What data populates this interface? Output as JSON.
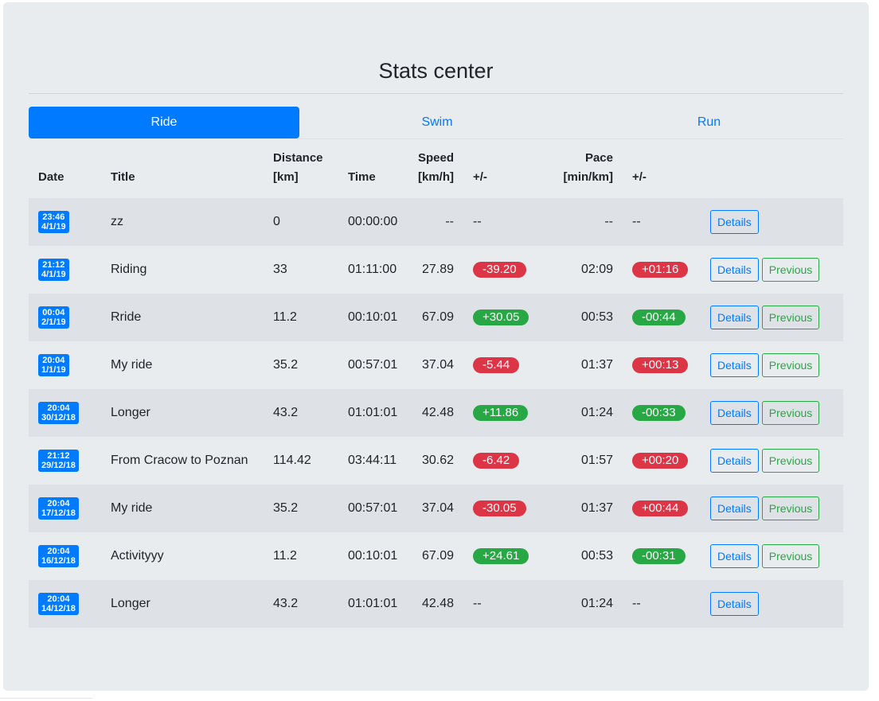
{
  "page": {
    "title": "Stats center"
  },
  "tabs": [
    {
      "label": "Ride",
      "active": true
    },
    {
      "label": "Swim",
      "active": false
    },
    {
      "label": "Run",
      "active": false
    }
  ],
  "table": {
    "headers": {
      "date": "Date",
      "title": "Title",
      "distance": [
        "Distance",
        "[km]"
      ],
      "time": "Time",
      "speed": [
        "Speed",
        "[km/h]"
      ],
      "speed_diff": "+/-",
      "pace": [
        "Pace",
        "[min/km]"
      ],
      "pace_diff": "+/-"
    },
    "details_label": "Details",
    "previous_label": "Previous",
    "rows": [
      {
        "time_of_day": "23:46",
        "date": "4/1/19",
        "title": "zz",
        "distance": "0",
        "time": "00:00:00",
        "speed": "--",
        "speed_diff": "--",
        "speed_diff_type": "none",
        "pace": "--",
        "pace_diff": "--",
        "pace_diff_type": "none",
        "has_previous": false
      },
      {
        "time_of_day": "21:12",
        "date": "4/1/19",
        "title": "Riding",
        "distance": "33",
        "time": "01:11:00",
        "speed": "27.89",
        "speed_diff": "-39.20",
        "speed_diff_type": "neg",
        "pace": "02:09",
        "pace_diff": "+01:16",
        "pace_diff_type": "neg",
        "has_previous": true
      },
      {
        "time_of_day": "00:04",
        "date": "2/1/19",
        "title": "Rride",
        "distance": "11.2",
        "time": "00:10:01",
        "speed": "67.09",
        "speed_diff": "+30.05",
        "speed_diff_type": "pos",
        "pace": "00:53",
        "pace_diff": "-00:44",
        "pace_diff_type": "pos",
        "has_previous": true
      },
      {
        "time_of_day": "20:04",
        "date": "1/1/19",
        "title": "My ride",
        "distance": "35.2",
        "time": "00:57:01",
        "speed": "37.04",
        "speed_diff": "-5.44",
        "speed_diff_type": "neg",
        "pace": "01:37",
        "pace_diff": "+00:13",
        "pace_diff_type": "neg",
        "has_previous": true
      },
      {
        "time_of_day": "20:04",
        "date": "30/12/18",
        "title": "Longer",
        "distance": "43.2",
        "time": "01:01:01",
        "speed": "42.48",
        "speed_diff": "+11.86",
        "speed_diff_type": "pos",
        "pace": "01:24",
        "pace_diff": "-00:33",
        "pace_diff_type": "pos",
        "has_previous": true
      },
      {
        "time_of_day": "21:12",
        "date": "29/12/18",
        "title": "From Cracow to Poznan",
        "distance": "114.42",
        "time": "03:44:11",
        "speed": "30.62",
        "speed_diff": "-6.42",
        "speed_diff_type": "neg",
        "pace": "01:57",
        "pace_diff": "+00:20",
        "pace_diff_type": "neg",
        "has_previous": true
      },
      {
        "time_of_day": "20:04",
        "date": "17/12/18",
        "title": "My ride",
        "distance": "35.2",
        "time": "00:57:01",
        "speed": "37.04",
        "speed_diff": "-30.05",
        "speed_diff_type": "neg",
        "pace": "01:37",
        "pace_diff": "+00:44",
        "pace_diff_type": "neg",
        "has_previous": true
      },
      {
        "time_of_day": "20:04",
        "date": "16/12/18",
        "title": "Activityyy",
        "distance": "11.2",
        "time": "00:10:01",
        "speed": "67.09",
        "speed_diff": "+24.61",
        "speed_diff_type": "pos",
        "pace": "00:53",
        "pace_diff": "-00:31",
        "pace_diff_type": "pos",
        "has_previous": true
      },
      {
        "time_of_day": "20:04",
        "date": "14/12/18",
        "title": "Longer",
        "distance": "43.2",
        "time": "01:01:01",
        "speed": "42.48",
        "speed_diff": "--",
        "speed_diff_type": "none",
        "pace": "01:24",
        "pace_diff": "--",
        "pace_diff_type": "none",
        "has_previous": false
      }
    ]
  },
  "colors": {
    "primary": "#007bff",
    "success": "#28a745",
    "danger": "#dc3545",
    "card_background": "#e9ecef",
    "stripe": "#dee2e6"
  }
}
